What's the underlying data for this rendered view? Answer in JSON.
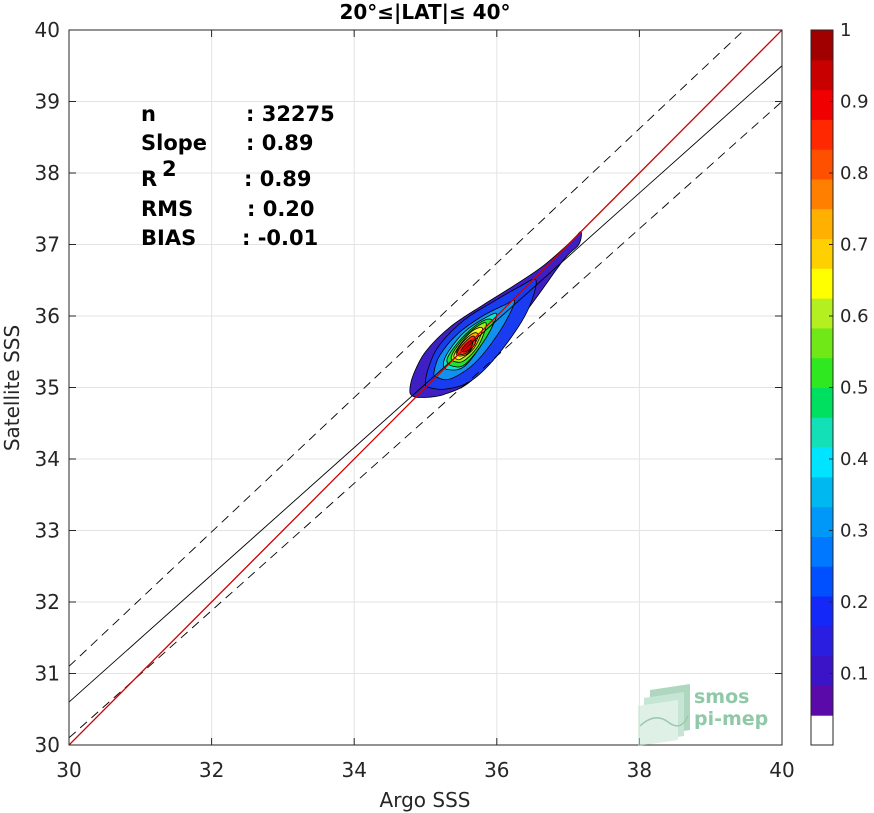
{
  "chart_data": {
    "type": "heatmap",
    "title": "20°≤|LAT|≤ 40°",
    "xlabel": "Argo SSS",
    "ylabel": "Satellite SSS",
    "xlim": [
      30,
      40
    ],
    "ylim": [
      30,
      40
    ],
    "xticks": [
      "30",
      "32",
      "34",
      "36",
      "38",
      "40"
    ],
    "yticks": [
      "30",
      "31",
      "32",
      "33",
      "34",
      "35",
      "36",
      "37",
      "38",
      "39",
      "40"
    ],
    "grid": true,
    "stats": [
      {
        "label": "n",
        "value": ": 32275"
      },
      {
        "label": "Slope",
        "value": ": 0.89"
      },
      {
        "label": "R",
        "sup": "2",
        "value": ": 0.89"
      },
      {
        "label": "RMS",
        "value": ": 0.20"
      },
      {
        "label": "BIAS",
        "value": ": -0.01"
      }
    ],
    "lines": {
      "identity": {
        "x": [
          30,
          40
        ],
        "y": [
          30,
          40
        ],
        "color": "#cc0000"
      },
      "fit": {
        "x": [
          30,
          40
        ],
        "y": [
          30.6,
          39.5
        ],
        "color": "#000000"
      },
      "upper": {
        "x": [
          30,
          40
        ],
        "y": [
          31.1,
          40.5
        ],
        "color": "#000000",
        "dash": true
      },
      "lower": {
        "x": [
          30,
          40
        ],
        "y": [
          30.1,
          39.0
        ],
        "color": "#000000",
        "dash": true
      }
    },
    "density": {
      "center": [
        35.6,
        35.6
      ],
      "levels": [
        {
          "value": 0.05,
          "color": "#3d1fc4",
          "x": [
            34.78,
            34.83,
            35.0,
            35.35,
            35.8,
            36.2,
            36.65,
            37.05,
            37.18,
            37.15,
            36.95,
            36.55,
            36.1,
            35.65,
            35.25,
            34.95,
            34.82
          ],
          "y": [
            34.96,
            35.18,
            35.5,
            35.85,
            36.15,
            36.4,
            36.7,
            37.05,
            37.18,
            37.0,
            36.8,
            36.25,
            35.65,
            35.1,
            34.9,
            34.86,
            34.88
          ]
        },
        {
          "value": 0.15,
          "color": "#1a3cf0",
          "x": [
            35.0,
            35.05,
            35.2,
            35.55,
            35.95,
            36.3,
            36.55,
            36.42,
            36.05,
            35.65,
            35.3,
            35.05
          ],
          "y": [
            35.06,
            35.3,
            35.6,
            35.95,
            36.2,
            36.4,
            36.5,
            36.05,
            35.5,
            35.1,
            34.98,
            35.0
          ]
        },
        {
          "value": 0.3,
          "color": "#1290f0",
          "x": [
            35.12,
            35.2,
            35.45,
            35.8,
            36.1,
            36.25,
            36.05,
            35.7,
            35.35,
            35.15
          ],
          "y": [
            35.22,
            35.45,
            35.75,
            36.0,
            36.15,
            36.2,
            35.8,
            35.35,
            35.12,
            35.15
          ]
        },
        {
          "value": 0.4,
          "color": "#14e0d0",
          "x": [
            35.25,
            35.32,
            35.55,
            35.85,
            36.0,
            35.85,
            35.55,
            35.32
          ],
          "y": [
            35.32,
            35.5,
            35.78,
            35.98,
            36.02,
            35.7,
            35.3,
            35.25
          ]
        },
        {
          "value": 0.5,
          "color": "#20e030",
          "x": [
            35.3,
            35.4,
            35.62,
            35.85,
            35.95,
            35.8,
            35.55,
            35.38
          ],
          "y": [
            35.38,
            35.56,
            35.8,
            35.95,
            35.9,
            35.62,
            35.32,
            35.3
          ]
        },
        {
          "value": 0.6,
          "color": "#a8e818",
          "x": [
            35.36,
            35.46,
            35.65,
            35.85,
            35.75,
            35.55,
            35.42
          ],
          "y": [
            35.42,
            35.6,
            35.8,
            35.9,
            35.6,
            35.38,
            35.36
          ]
        },
        {
          "value": 0.7,
          "color": "#f4f420",
          "x": [
            35.4,
            35.5,
            35.67,
            35.8,
            35.68,
            35.5,
            35.43
          ],
          "y": [
            35.45,
            35.62,
            35.8,
            35.82,
            35.55,
            35.4,
            35.4
          ]
        },
        {
          "value": 0.8,
          "color": "#ffb000",
          "x": [
            35.43,
            35.52,
            35.67,
            35.74,
            35.62,
            35.5
          ],
          "y": [
            35.48,
            35.63,
            35.76,
            35.72,
            35.5,
            35.44
          ]
        },
        {
          "value": 0.9,
          "color": "#ff3010",
          "x": [
            35.45,
            35.55,
            35.67,
            35.7,
            35.6,
            35.5
          ],
          "y": [
            35.5,
            35.63,
            35.72,
            35.62,
            35.5,
            35.46
          ]
        },
        {
          "value": 1.0,
          "color": "#d80000",
          "x": [
            35.5,
            35.58,
            35.66,
            35.64,
            35.56
          ],
          "y": [
            35.52,
            35.62,
            35.66,
            35.56,
            35.5
          ]
        }
      ]
    },
    "colorbar": {
      "range": [
        0,
        1
      ],
      "ticks": [
        "0.1",
        "0.2",
        "0.3",
        "0.4",
        "0.5",
        "0.6",
        "0.7",
        "0.8",
        "0.9",
        "1"
      ],
      "bands": [
        "#ffffff",
        "#5a0aa8",
        "#3c14c8",
        "#2a1ee0",
        "#1428f8",
        "#0050ff",
        "#0078ff",
        "#0098f8",
        "#00b8f0",
        "#00e4ff",
        "#14e0b8",
        "#00e060",
        "#30e820",
        "#70e818",
        "#b4f020",
        "#ffff00",
        "#ffd000",
        "#ffb000",
        "#ff8000",
        "#ff5000",
        "#ff2800",
        "#f00000",
        "#c80000",
        "#a00000"
      ]
    }
  },
  "logo": {
    "line1": "smos",
    "line2": "pi-mep"
  }
}
